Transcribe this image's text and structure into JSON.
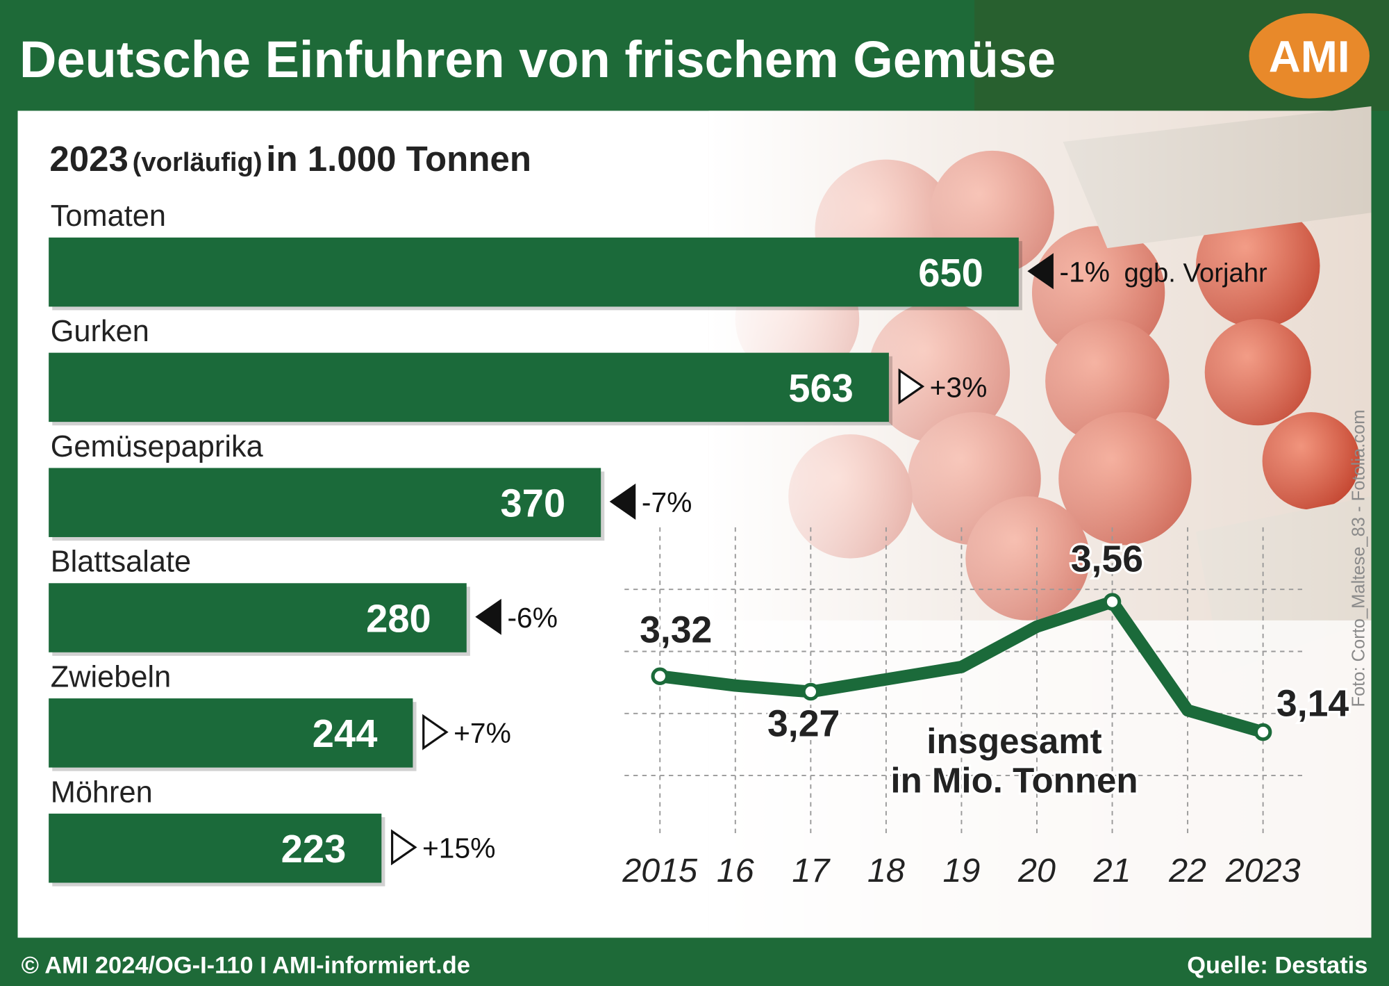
{
  "header": {
    "title": "Deutsche Einfuhren von frischem Gemüse",
    "logo": "AMI"
  },
  "footer": {
    "copyright": "© AMI 2024/OG-I-110 I AMI-informiert.de",
    "source": "Quelle: Destatis",
    "photo_credit": "Foto: Corto_Maltese_83 - Fotolia.com"
  },
  "chart_data": [
    {
      "type": "bar",
      "orientation": "horizontal",
      "color": "#1b6a3a",
      "subtitle": [
        "2023",
        "(vorläufig)",
        "in 1.000 Tonnen"
      ],
      "categories": [
        "Tomaten",
        "Gurken",
        "Gemüsepaprika",
        "Blattsalate",
        "Zwiebeln",
        "Möhren"
      ],
      "values": [
        650,
        563,
        370,
        280,
        244,
        223
      ],
      "changes": [
        "-1%",
        "+3%",
        "-7%",
        "-6%",
        "+7%",
        "+15%"
      ],
      "change_note": "ggb. Vorjahr"
    },
    {
      "type": "line",
      "color": "#1b6a3a",
      "categories": [
        "2015",
        "16",
        "17",
        "18",
        "19",
        "20",
        "21",
        "22",
        "2023"
      ],
      "values": [
        3.32,
        3.29,
        3.27,
        3.31,
        3.35,
        3.48,
        3.56,
        3.21,
        3.14
      ],
      "value_labels": [
        "3,32",
        null,
        "3,27",
        null,
        null,
        null,
        "3,56",
        null,
        "3,14"
      ],
      "ylim": [
        2.8,
        3.8
      ],
      "yticks": [
        3.0,
        3.2,
        3.4,
        3.6
      ],
      "grid": true,
      "annotation": [
        "insgesamt",
        "in Mio. Tonnen"
      ]
    }
  ]
}
